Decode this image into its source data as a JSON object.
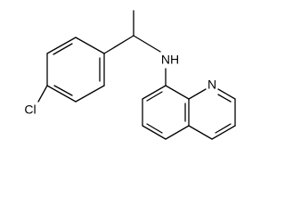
{
  "atoms": [
    {
      "label": "Cl"
    },
    {
      "label": "NH"
    },
    {
      "label": "N"
    }
  ]
}
